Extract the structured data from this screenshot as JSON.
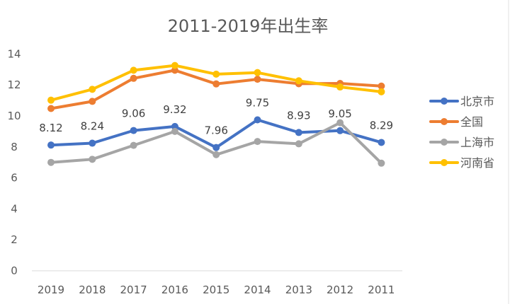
{
  "chart_data": {
    "type": "line",
    "title": "2011-2019年出生率",
    "categories": [
      "2019",
      "2018",
      "2017",
      "2016",
      "2015",
      "2014",
      "2013",
      "2012",
      "2011"
    ],
    "ylim": [
      0,
      14
    ],
    "yticks": [
      "0",
      "2",
      "4",
      "6",
      "8",
      "10",
      "12",
      "14"
    ],
    "grid": false,
    "legend_position": "right",
    "series": [
      {
        "name": "北京市",
        "color": "#4472C4",
        "values": [
          8.12,
          8.24,
          9.06,
          9.32,
          7.96,
          9.75,
          8.93,
          9.05,
          8.29
        ],
        "data_labels": [
          "8.12",
          "8.24",
          "9.06",
          "9.32",
          "7.96",
          "9.75",
          "8.93",
          "9.05",
          "8.29"
        ]
      },
      {
        "name": "全国",
        "color": "#ED7D31",
        "values": [
          10.48,
          10.94,
          12.43,
          12.95,
          12.07,
          12.37,
          12.08,
          12.1,
          11.93
        ]
      },
      {
        "name": "上海市",
        "color": "#A5A5A5",
        "values": [
          7.0,
          7.2,
          8.1,
          9.0,
          7.5,
          8.35,
          8.2,
          9.56,
          6.95
        ]
      },
      {
        "name": "河南省",
        "color": "#FFC000",
        "values": [
          11.02,
          11.72,
          12.95,
          13.26,
          12.7,
          12.8,
          12.27,
          11.87,
          11.56
        ]
      }
    ]
  }
}
